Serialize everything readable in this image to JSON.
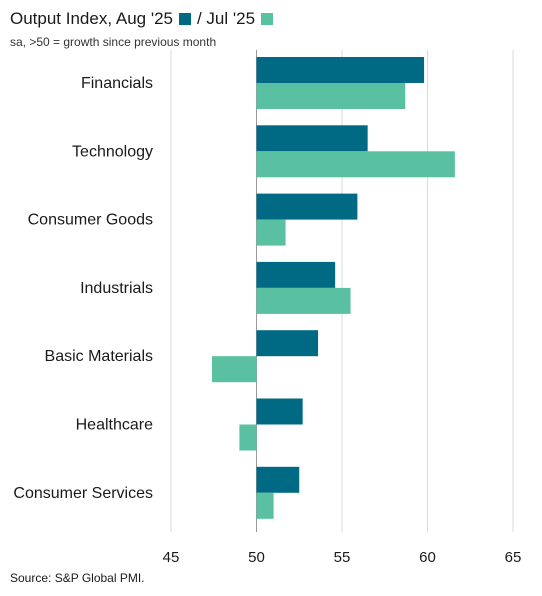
{
  "chart_data": {
    "type": "bar",
    "orientation": "horizontal",
    "title": "Output Index, Aug '25",
    "subtitle": "sa, >50 = growth since previous month",
    "source": "Source: S&P Global PMI.",
    "categories": [
      "Financials",
      "Technology",
      "Consumer Goods",
      "Industrials",
      "Basic Materials",
      "Healthcare",
      "Consumer Services"
    ],
    "series": [
      {
        "name": "Aug '25",
        "color": "#006a85",
        "values": [
          59.8,
          56.5,
          55.9,
          54.6,
          53.6,
          52.7,
          52.5
        ]
      },
      {
        "name": "/ Jul '25",
        "color": "#59c0a1",
        "values": [
          58.7,
          61.6,
          51.7,
          55.5,
          47.4,
          49.0,
          51.0
        ]
      }
    ],
    "baseline": 50,
    "xlim": [
      45,
      65
    ],
    "xticks": [
      45,
      50,
      55,
      60,
      65
    ],
    "xtick_labels": [
      "45",
      "50",
      "55",
      "60",
      "65"
    ],
    "grid": "vertical",
    "legend": "inline-with-title"
  }
}
